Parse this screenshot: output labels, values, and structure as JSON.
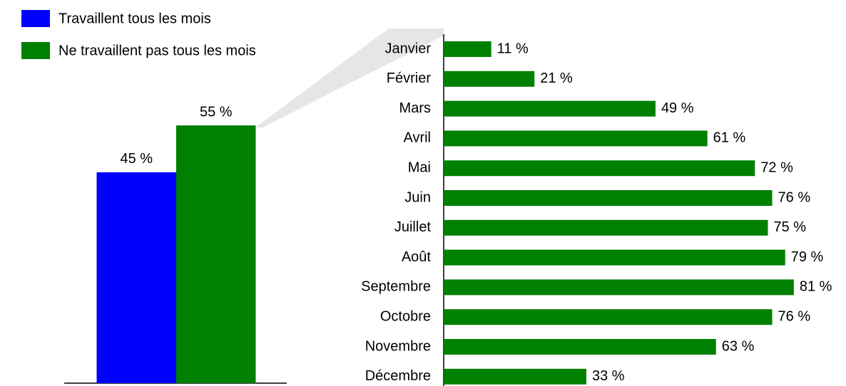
{
  "chart_data": [
    {
      "type": "bar",
      "categories": [
        null
      ],
      "series": [
        {
          "name": "Travaillent tous les mois",
          "color": "#0000ff",
          "values": [
            45
          ],
          "value_labels": [
            "45 %"
          ]
        },
        {
          "name": "Ne travaillent pas tous les mois",
          "color": "#008000",
          "values": [
            55
          ],
          "value_labels": [
            "55 %"
          ]
        }
      ]
    },
    {
      "type": "barh",
      "categories": [
        "Janvier",
        "Février",
        "Mars",
        "Avril",
        "Mai",
        "Juin",
        "Juillet",
        "Août",
        "Septembre",
        "Octobre",
        "Novembre",
        "Décembre"
      ],
      "values": [
        11,
        21,
        49,
        61,
        72,
        76,
        75,
        79,
        81,
        76,
        63,
        33
      ],
      "value_labels": [
        "11 %",
        "21 %",
        "49 %",
        "61 %",
        "72 %",
        "76 %",
        "75 %",
        "79 %",
        "81 %",
        "76 %",
        "63 %",
        "33 %"
      ],
      "color": "#008000"
    }
  ]
}
